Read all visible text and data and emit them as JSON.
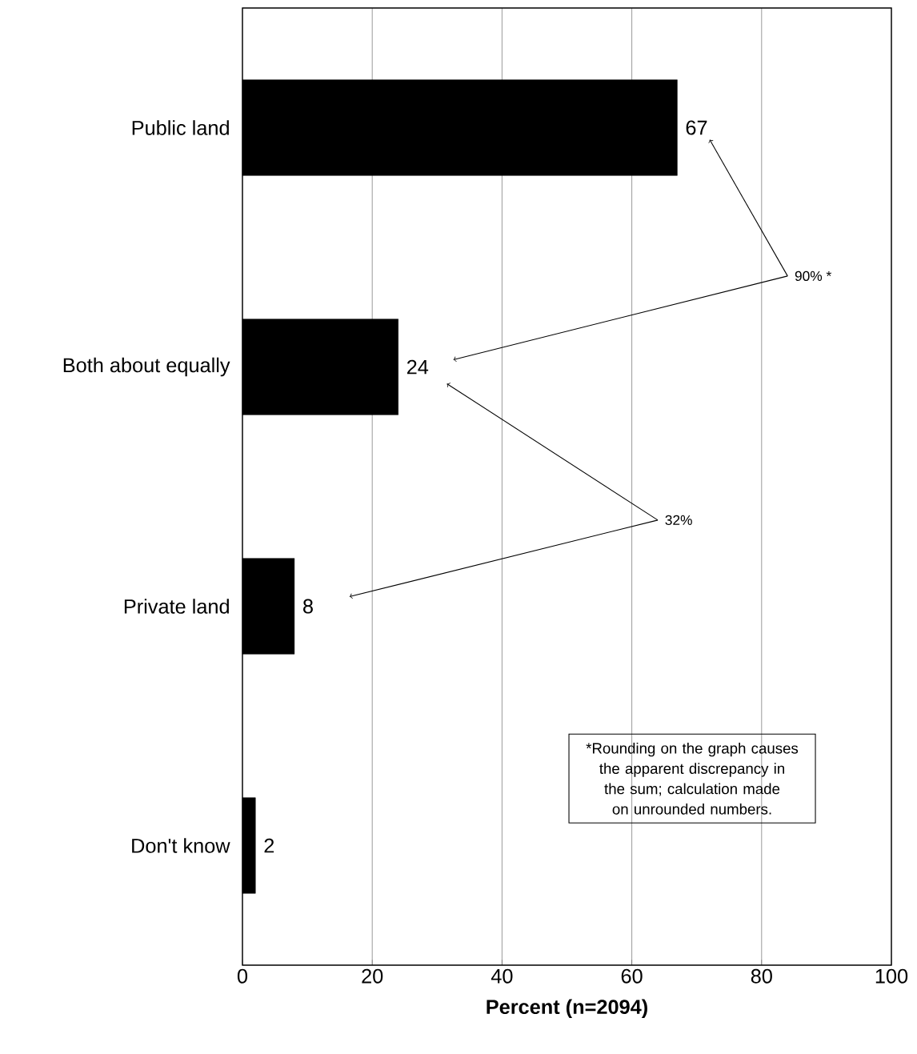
{
  "chart_data": {
    "type": "bar",
    "orientation": "horizontal",
    "categories": [
      "Public land",
      "Both about equally",
      "Private land",
      "Don't know"
    ],
    "values": [
      67,
      24,
      8,
      2
    ],
    "color": "#000000",
    "data_labels": true,
    "xlabel": "Percent (n=2094)",
    "xlim": [
      0,
      100
    ],
    "xticks": [
      0,
      20,
      40,
      60,
      80,
      100
    ],
    "grid": "x",
    "annotations": [
      "90% *",
      "32%",
      "*Rounding on the graph causes the apparent discrepancy in the sum; calculation made on unrounded numbers."
    ]
  }
}
